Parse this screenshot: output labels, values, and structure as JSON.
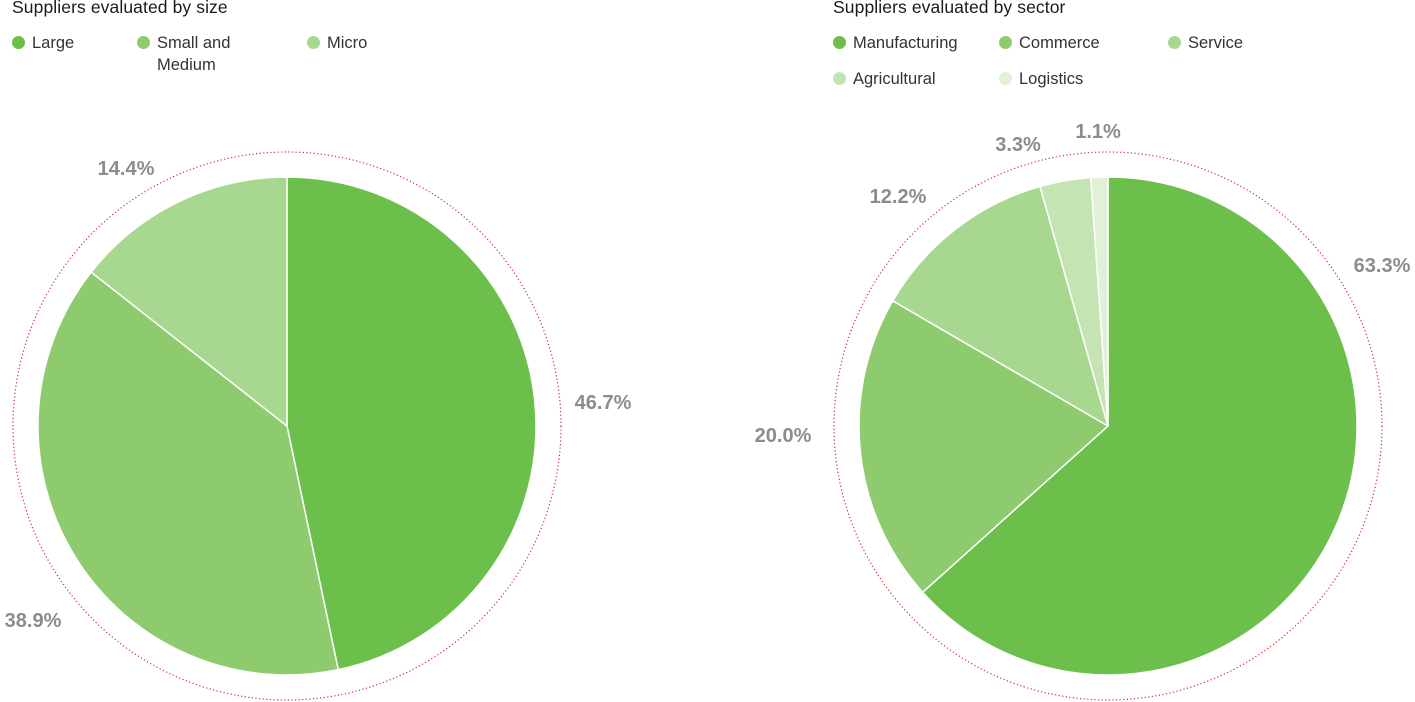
{
  "chart_data": [
    {
      "type": "pie",
      "title": "Suppliers evaluated by size",
      "slices": [
        {
          "label": "Large",
          "value": 46.7,
          "display": "46.7%",
          "color": "#6cbf4a"
        },
        {
          "label": "Small and Medium",
          "value": 38.9,
          "display": "38.9%",
          "color": "#8dcb6e"
        },
        {
          "label": "Micro",
          "value": 14.4,
          "display": "14.4%",
          "color": "#a8d88f"
        }
      ],
      "legend_position": "top-left",
      "outline_color": "#cc3333"
    },
    {
      "type": "pie",
      "title": "Suppliers evaluated by sector",
      "slices": [
        {
          "label": "Manufacturing",
          "value": 63.3,
          "display": "63.3%",
          "color": "#6cbf4a"
        },
        {
          "label": "Commerce",
          "value": 20.0,
          "display": "20.0%",
          "color": "#8dcb6e"
        },
        {
          "label": "Service",
          "value": 12.2,
          "display": "12.2%",
          "color": "#a8d88f"
        },
        {
          "label": "Agricultural",
          "value": 3.3,
          "display": "3.3%",
          "color": "#c5e4b4"
        },
        {
          "label": "Logistics",
          "value": 1.1,
          "display": "1.1%",
          "color": "#e1f1d6"
        }
      ],
      "legend_position": "top-left",
      "outline_color": "#cc3333"
    }
  ]
}
